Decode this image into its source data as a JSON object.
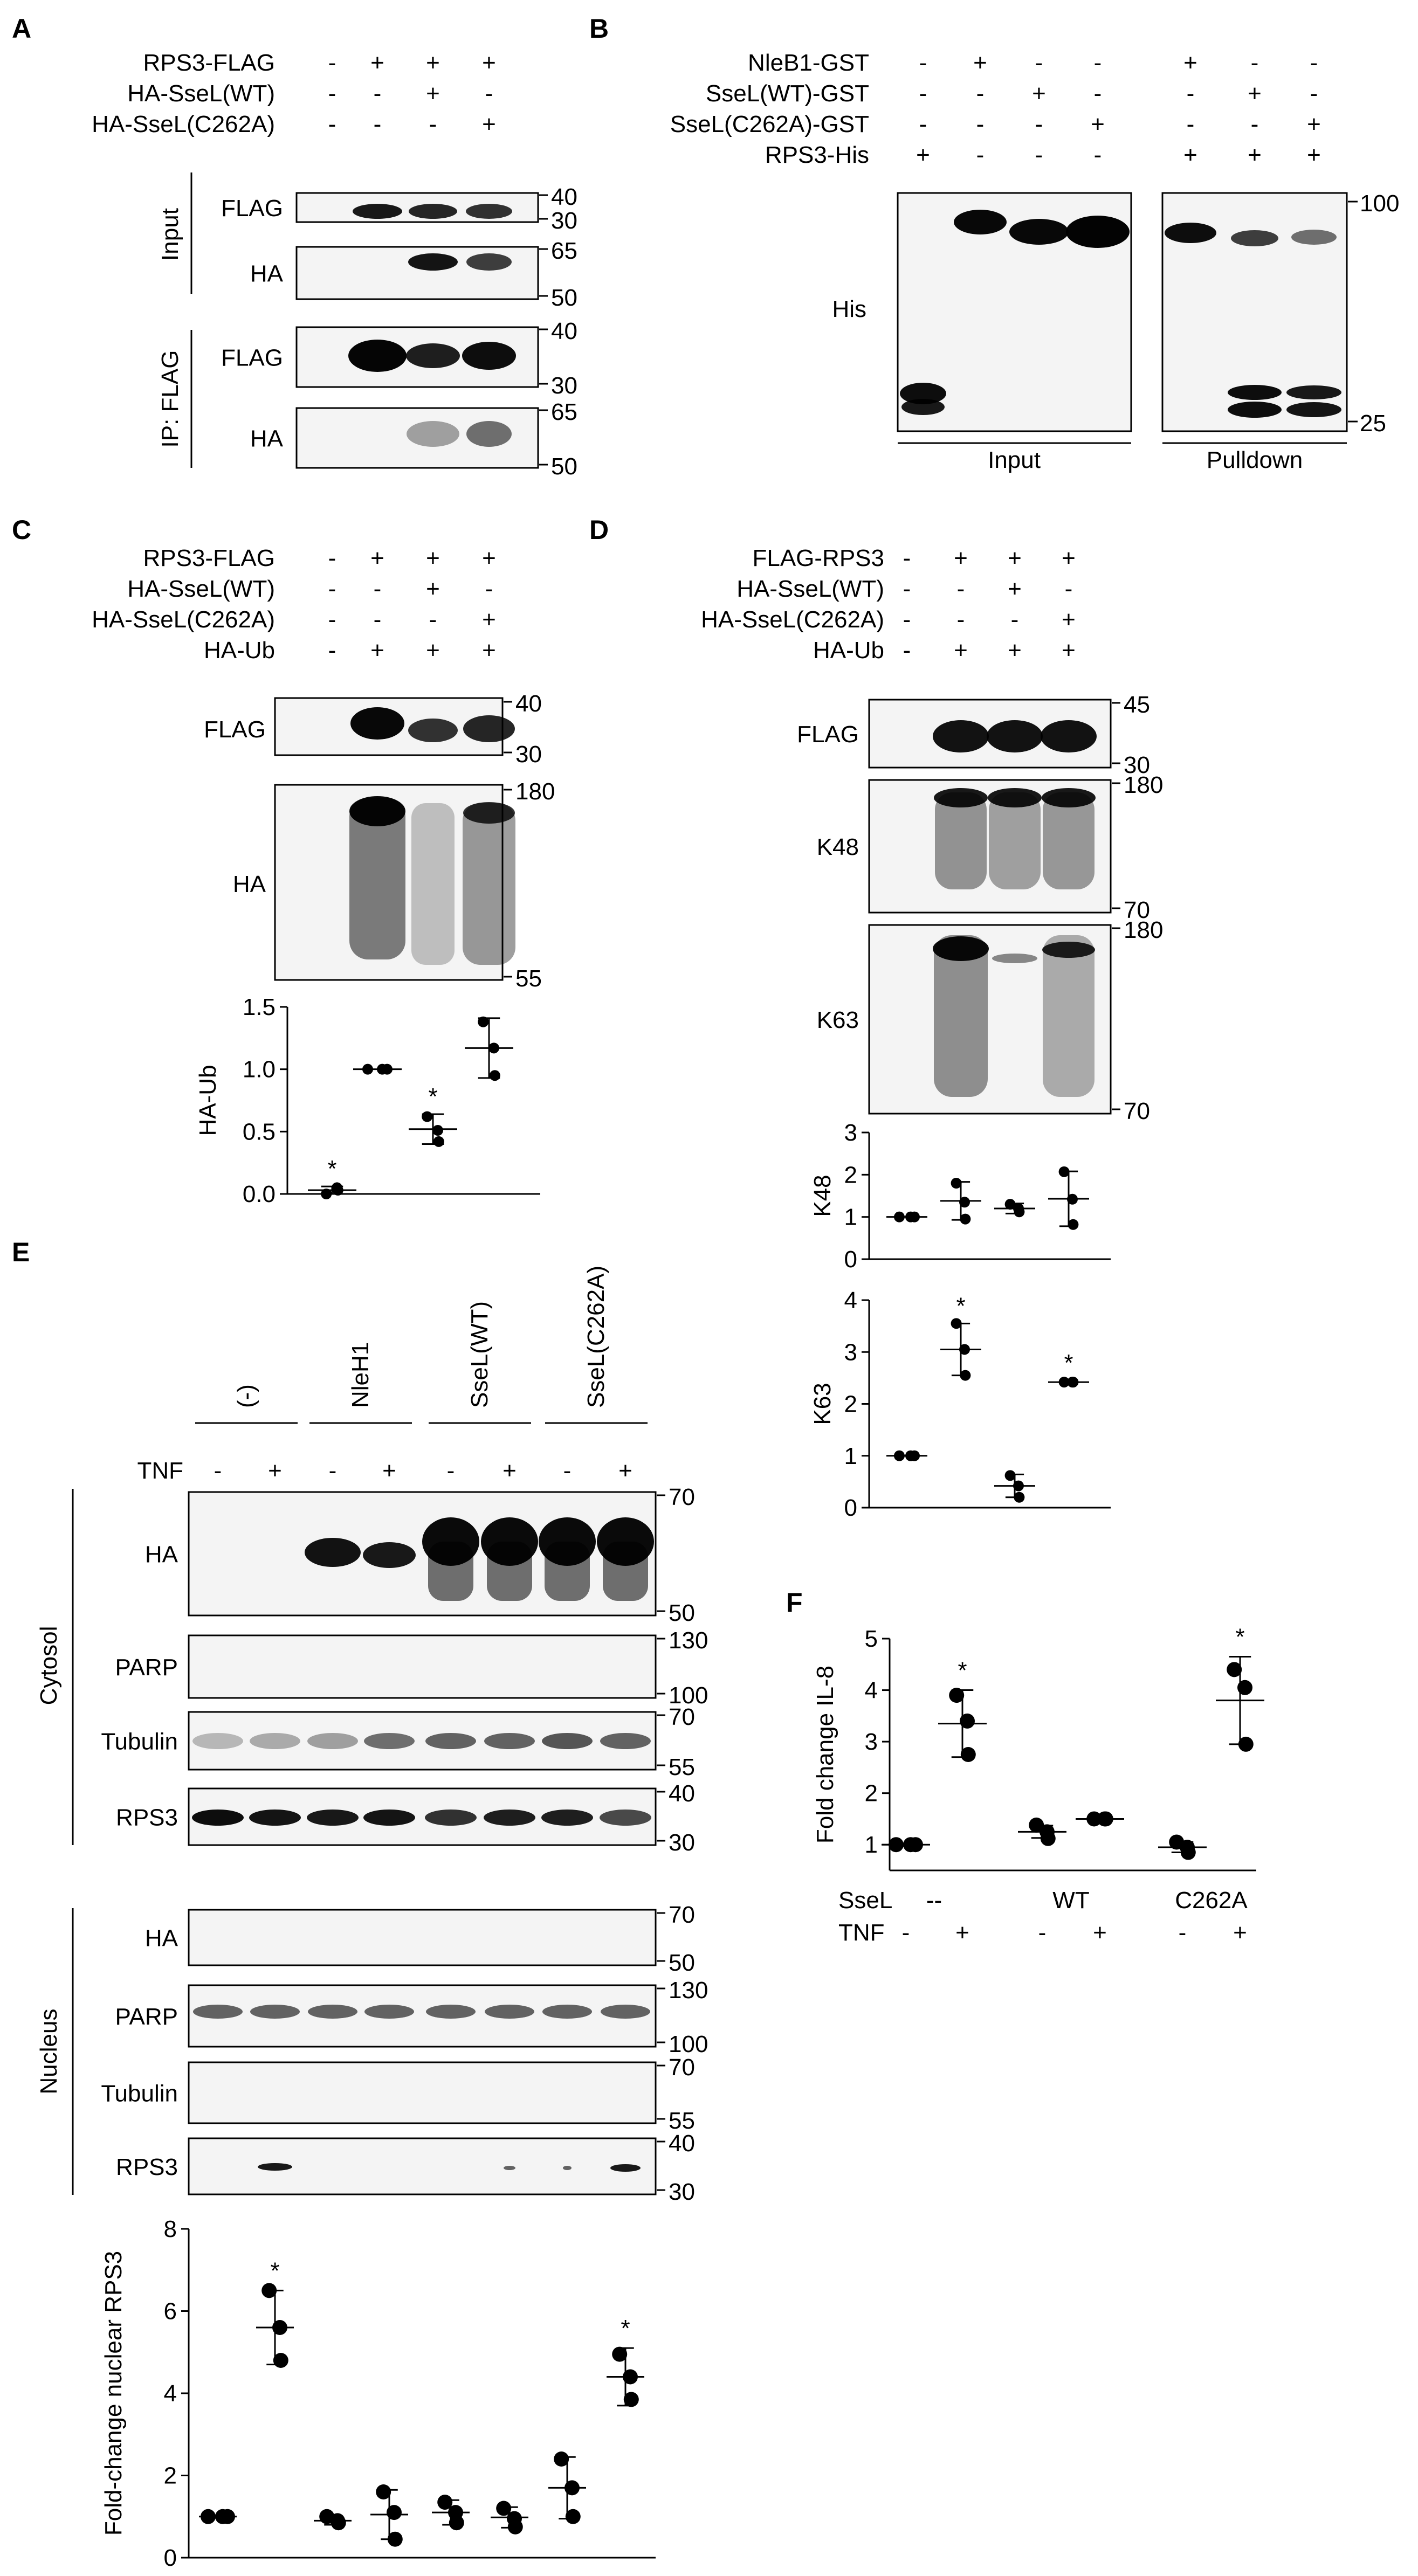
{
  "panels": {
    "A": {
      "letter": "A",
      "conditions": [
        {
          "label": "RPS3-FLAG",
          "signs": [
            "-",
            "+",
            "+",
            "+"
          ]
        },
        {
          "label": "HA-SseL(WT)",
          "signs": [
            "-",
            "-",
            "+",
            "-"
          ]
        },
        {
          "label": "HA-SseL(C262A)",
          "signs": [
            "-",
            "-",
            "-",
            "+"
          ]
        }
      ],
      "groups": [
        "Input",
        "IP: FLAG"
      ],
      "blots": [
        {
          "label": "FLAG",
          "mw": [
            "40",
            "30"
          ]
        },
        {
          "label": "HA",
          "mw": [
            "65",
            "50"
          ]
        },
        {
          "label": "FLAG",
          "mw": [
            "40",
            "30"
          ]
        },
        {
          "label": "HA",
          "mw": [
            "65",
            "50"
          ]
        }
      ]
    },
    "B": {
      "letter": "B",
      "conditions": [
        {
          "label": "NleB1-GST",
          "signs": [
            "-",
            "+",
            "-",
            "-",
            "+",
            "-",
            "-"
          ]
        },
        {
          "label": "SseL(WT)-GST",
          "signs": [
            "-",
            "-",
            "+",
            "-",
            "-",
            "+",
            "-"
          ]
        },
        {
          "label": "SseL(C262A)-GST",
          "signs": [
            "-",
            "-",
            "-",
            "+",
            "-",
            "-",
            "+"
          ]
        },
        {
          "label": "RPS3-His",
          "signs": [
            "+",
            "-",
            "-",
            "-",
            "+",
            "+",
            "+"
          ]
        }
      ],
      "blot_label": "His",
      "mw": [
        "100",
        "25"
      ],
      "groups": [
        "Input",
        "Pulldown"
      ]
    },
    "C": {
      "letter": "C",
      "conditions": [
        {
          "label": "RPS3-FLAG",
          "signs": [
            "-",
            "+",
            "+",
            "+"
          ]
        },
        {
          "label": "HA-SseL(WT)",
          "signs": [
            "-",
            "-",
            "+",
            "-"
          ]
        },
        {
          "label": "HA-SseL(C262A)",
          "signs": [
            "-",
            "-",
            "-",
            "+"
          ]
        },
        {
          "label": "HA-Ub",
          "signs": [
            "-",
            "+",
            "+",
            "+"
          ]
        }
      ],
      "blots": [
        {
          "label": "FLAG",
          "mw": [
            "40",
            "30"
          ]
        },
        {
          "label": "HA",
          "mw": [
            "180",
            "55"
          ]
        }
      ]
    },
    "D": {
      "letter": "D",
      "conditions": [
        {
          "label": "FLAG-RPS3",
          "signs": [
            "-",
            "+",
            "+",
            "+"
          ]
        },
        {
          "label": "HA-SseL(WT)",
          "signs": [
            "-",
            "-",
            "+",
            "-"
          ]
        },
        {
          "label": "HA-SseL(C262A)",
          "signs": [
            "-",
            "-",
            "-",
            "+"
          ]
        },
        {
          "label": "HA-Ub",
          "signs": [
            "-",
            "+",
            "+",
            "+"
          ]
        }
      ],
      "blots": [
        {
          "label": "FLAG",
          "mw": [
            "45",
            "30"
          ]
        },
        {
          "label": "K48",
          "mw": [
            "180",
            "70"
          ]
        },
        {
          "label": "K63",
          "mw": [
            "180",
            "70"
          ]
        }
      ]
    },
    "E": {
      "letter": "E",
      "groups": [
        "(-)",
        "NleH1",
        "SseL(WT)",
        "SseL(C262A)"
      ],
      "tnf_label": "TNF",
      "tnf_signs": [
        "-",
        "+",
        "-",
        "+",
        "-",
        "+",
        "-",
        "+"
      ],
      "fractions": [
        "Cytosol",
        "Nucleus"
      ],
      "blots": [
        {
          "label": "HA",
          "mw": [
            "70",
            "50"
          ]
        },
        {
          "label": "PARP",
          "mw": [
            "130",
            "100"
          ]
        },
        {
          "label": "Tubulin",
          "mw": [
            "70",
            "55"
          ]
        },
        {
          "label": "RPS3",
          "mw": [
            "40",
            "30"
          ]
        },
        {
          "label": "HA",
          "mw": [
            "70",
            "50"
          ]
        },
        {
          "label": "PARP",
          "mw": [
            "130",
            "100"
          ]
        },
        {
          "label": "Tubulin",
          "mw": [
            "70",
            "55"
          ]
        },
        {
          "label": "RPS3",
          "mw": [
            "40",
            "30"
          ]
        }
      ]
    },
    "F": {
      "letter": "F",
      "row_labels": [
        "SseL",
        "TNF"
      ],
      "sseL_values": [
        "--",
        "WT",
        "C262A"
      ],
      "tnf_signs": [
        "-",
        "+",
        "-",
        "+",
        "-",
        "+"
      ]
    }
  },
  "chart_data": [
    {
      "id": "C-HA-Ub",
      "type": "scatter",
      "ylabel": "HA-Ub",
      "ylim": [
        0,
        1.5
      ],
      "yticks": [
        "0.0",
        "0.5",
        "1.0",
        "1.5"
      ],
      "groups": [
        {
          "mean": 0.03,
          "sd": 0.03,
          "points": [
            0.0,
            0.05,
            0.03
          ],
          "star": true
        },
        {
          "mean": 1.0,
          "sd": 0.0,
          "points": [
            1.0,
            1.0,
            1.0
          ],
          "star": false
        },
        {
          "mean": 0.52,
          "sd": 0.12,
          "points": [
            0.62,
            0.51,
            0.42
          ],
          "star": true
        },
        {
          "mean": 1.17,
          "sd": 0.24,
          "points": [
            1.38,
            1.17,
            0.95
          ],
          "star": false
        }
      ]
    },
    {
      "id": "D-K48",
      "type": "scatter",
      "ylabel": "K48",
      "ylim": [
        0,
        3
      ],
      "yticks": [
        "0",
        "1",
        "2",
        "3"
      ],
      "groups": [
        {
          "mean": 1.0,
          "sd": 0.0,
          "points": [
            1.0,
            1.0,
            1.0
          ],
          "star": false
        },
        {
          "mean": 1.38,
          "sd": 0.45,
          "points": [
            1.8,
            1.35,
            0.95
          ],
          "star": false
        },
        {
          "mean": 1.2,
          "sd": 0.12,
          "points": [
            1.3,
            1.2,
            1.12
          ],
          "star": false
        },
        {
          "mean": 1.43,
          "sd": 0.65,
          "points": [
            2.07,
            1.42,
            0.82
          ],
          "star": false
        }
      ]
    },
    {
      "id": "D-K63",
      "type": "scatter",
      "ylabel": "K63",
      "ylim": [
        0,
        4
      ],
      "yticks": [
        "0",
        "1",
        "2",
        "3",
        "4"
      ],
      "groups": [
        {
          "mean": 1.0,
          "sd": 0.0,
          "points": [
            1.0,
            1.0,
            1.0
          ],
          "star": false
        },
        {
          "mean": 3.05,
          "sd": 0.5,
          "points": [
            3.55,
            3.05,
            2.55
          ],
          "star": true
        },
        {
          "mean": 0.42,
          "sd": 0.22,
          "points": [
            0.62,
            0.42,
            0.2
          ],
          "star": false
        },
        {
          "mean": 2.42,
          "sd": 0.03,
          "points": [
            2.42,
            2.42,
            2.42
          ],
          "star": true
        }
      ]
    },
    {
      "id": "E-nuclear-RPS3",
      "type": "scatter",
      "ylabel": "Fold-change nuclear RPS3",
      "ylim": [
        0,
        8
      ],
      "yticks": [
        "0",
        "2",
        "4",
        "6",
        "8"
      ],
      "groups": [
        {
          "mean": 1.0,
          "sd": 0.0,
          "points": [
            1.0,
            1.0,
            1.0
          ],
          "star": false
        },
        {
          "mean": 5.6,
          "sd": 0.9,
          "points": [
            6.5,
            5.6,
            4.8
          ],
          "star": true
        },
        {
          "mean": 0.9,
          "sd": 0.1,
          "points": [
            1.0,
            0.9,
            0.85
          ],
          "star": false
        },
        {
          "mean": 1.05,
          "sd": 0.6,
          "points": [
            1.6,
            1.1,
            0.45
          ],
          "star": false
        },
        {
          "mean": 1.1,
          "sd": 0.3,
          "points": [
            1.35,
            1.1,
            0.85
          ],
          "star": false
        },
        {
          "mean": 0.98,
          "sd": 0.25,
          "points": [
            1.2,
            0.95,
            0.75
          ],
          "star": false
        },
        {
          "mean": 1.7,
          "sd": 0.75,
          "points": [
            2.4,
            1.7,
            1.0
          ],
          "star": false
        },
        {
          "mean": 4.4,
          "sd": 0.7,
          "points": [
            4.95,
            4.4,
            3.85
          ],
          "star": true
        }
      ]
    },
    {
      "id": "F-IL8",
      "type": "scatter",
      "ylabel": "Fold change IL-8",
      "ylim": [
        0.5,
        5
      ],
      "yticks": [
        "1",
        "2",
        "3",
        "4",
        "5"
      ],
      "groups": [
        {
          "mean": 1.0,
          "sd": 0.0,
          "points": [
            1.0,
            1.0,
            1.0
          ],
          "star": false
        },
        {
          "mean": 3.35,
          "sd": 0.65,
          "points": [
            3.9,
            3.4,
            2.75
          ],
          "star": true
        },
        {
          "mean": 1.25,
          "sd": 0.12,
          "points": [
            1.38,
            1.25,
            1.12
          ],
          "star": false
        },
        {
          "mean": 1.5,
          "sd": 0.03,
          "points": [
            1.5,
            1.5,
            1.5
          ],
          "star": false
        },
        {
          "mean": 0.95,
          "sd": 0.1,
          "points": [
            1.05,
            0.95,
            0.85
          ],
          "star": false
        },
        {
          "mean": 3.8,
          "sd": 0.85,
          "points": [
            4.4,
            4.05,
            2.95
          ],
          "star": true
        }
      ]
    }
  ]
}
